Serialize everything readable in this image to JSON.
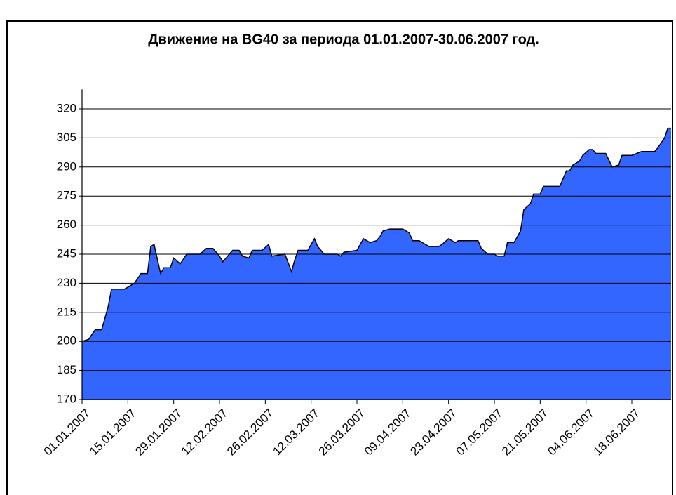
{
  "chart_data": {
    "type": "area",
    "title": "Движение на BG40 за периода 01.01.2007-30.06.2007 год.",
    "x": [
      "01.01.2007",
      "03.01.2007",
      "05.01.2007",
      "07.01.2007",
      "09.01.2007",
      "10.01.2007",
      "14.01.2007",
      "16.01.2007",
      "17.01.2007",
      "19.01.2007",
      "21.01.2007",
      "22.01.2007",
      "23.01.2007",
      "25.01.2007",
      "26.01.2007",
      "28.01.2007",
      "29.01.2007",
      "31.01.2007",
      "02.02.2007",
      "06.02.2007",
      "08.02.2007",
      "10.02.2007",
      "12.02.2007",
      "13.02.2007",
      "16.02.2007",
      "18.02.2007",
      "19.02.2007",
      "21.02.2007",
      "22.02.2007",
      "25.02.2007",
      "27.02.2007",
      "28.02.2007",
      "04.03.2007",
      "06.03.2007",
      "07.03.2007",
      "08.03.2007",
      "11.03.2007",
      "13.03.2007",
      "14.03.2007",
      "16.03.2007",
      "20.03.2007",
      "21.03.2007",
      "22.03.2007",
      "26.03.2007",
      "28.03.2007",
      "30.03.2007",
      "01.04.2007",
      "02.04.2007",
      "03.04.2007",
      "05.04.2007",
      "09.04.2007",
      "11.04.2007",
      "12.04.2007",
      "14.04.2007",
      "17.04.2007",
      "20.04.2007",
      "21.04.2007",
      "23.04.2007",
      "25.04.2007",
      "26.04.2007",
      "02.05.2007",
      "03.05.2007",
      "05.05.2007",
      "07.05.2007",
      "08.05.2007",
      "10.05.2007",
      "11.05.2007",
      "13.05.2007",
      "15.05.2007",
      "16.05.2007",
      "18.05.2007",
      "19.05.2007",
      "21.05.2007",
      "22.05.2007",
      "27.05.2007",
      "29.05.2007",
      "30.05.2007",
      "31.05.2007",
      "02.06.2007",
      "03.06.2007",
      "05.06.2007",
      "06.06.2007",
      "07.06.2007",
      "10.06.2007",
      "12.06.2007",
      "14.06.2007",
      "15.06.2007",
      "18.06.2007",
      "21.06.2007",
      "25.06.2007",
      "26.06.2007",
      "28.06.2007",
      "29.06.2007",
      "30.06.2007"
    ],
    "values": [
      200,
      201,
      206,
      206,
      218,
      227,
      227,
      229,
      230,
      235,
      235,
      249,
      250,
      235,
      238,
      238,
      243,
      240,
      245,
      245,
      248,
      248,
      244,
      241,
      247,
      247,
      244,
      243,
      247,
      247,
      250,
      244,
      245,
      236,
      242,
      247,
      247,
      253,
      249,
      245,
      245,
      244,
      246,
      247,
      253,
      251,
      252,
      254,
      257,
      258,
      258,
      256,
      252,
      252,
      249,
      249,
      250,
      253,
      251,
      252,
      252,
      248,
      245,
      245,
      244,
      244,
      251,
      251,
      257,
      268,
      271,
      276,
      276,
      280,
      280,
      288,
      288,
      291,
      293,
      296,
      299,
      299,
      297,
      297,
      290,
      291,
      296,
      296,
      298,
      298,
      300,
      305,
      310,
      310
    ],
    "color": "#3366ff",
    "xlim": [
      "01.01.2007",
      "30.06.2007"
    ],
    "xticks": [
      "01.01.2007",
      "15.01.2007",
      "29.01.2007",
      "12.02.2007",
      "26.02.2007",
      "12.03.2007",
      "26.03.2007",
      "09.04.2007",
      "23.04.2007",
      "07.05.2007",
      "21.05.2007",
      "04.06.2007",
      "18.06.2007"
    ],
    "ylim": [
      170,
      330
    ],
    "yticks": [
      170,
      185,
      200,
      215,
      230,
      245,
      260,
      275,
      290,
      305,
      320
    ],
    "grid": true
  }
}
